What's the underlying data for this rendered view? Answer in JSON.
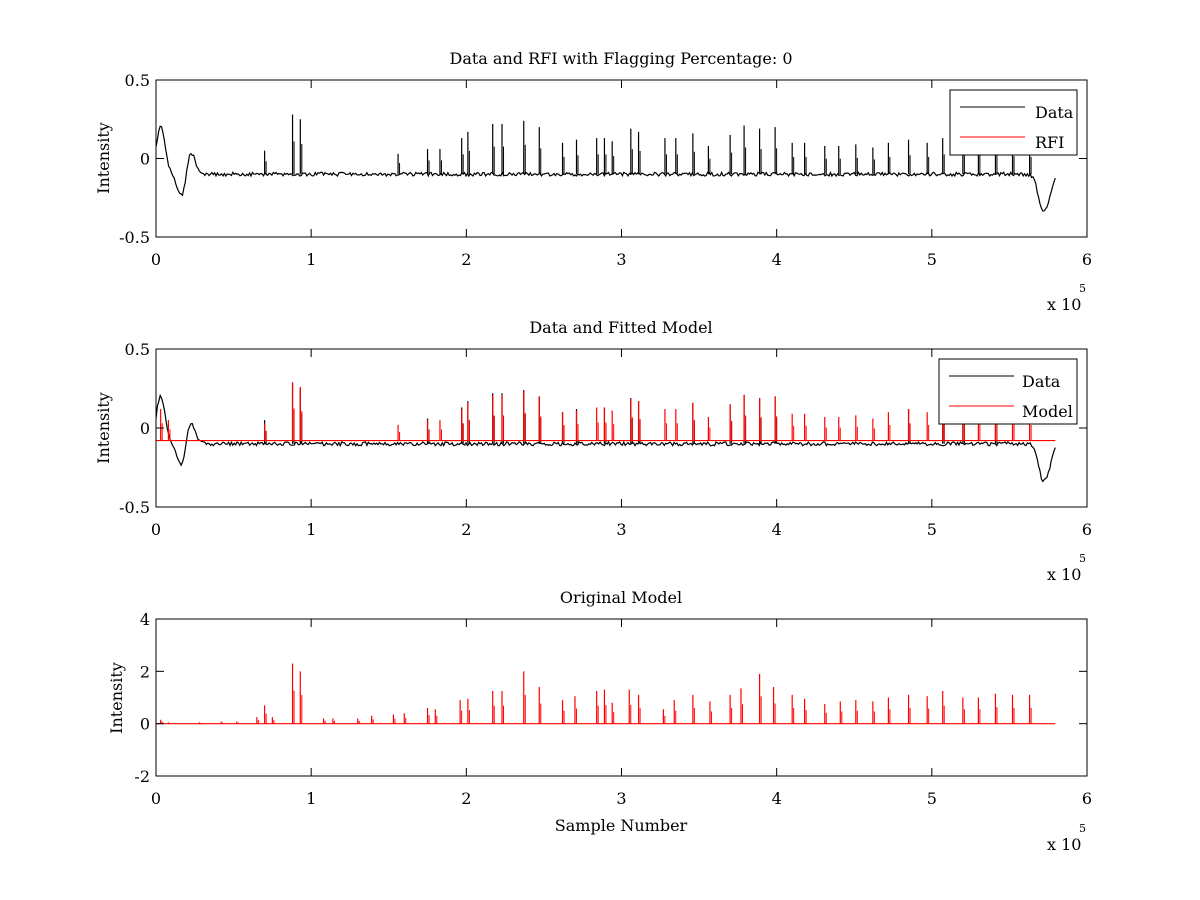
{
  "chart_data": [
    {
      "type": "line",
      "title": "Data and RFI with Flagging Percentage: 0",
      "xlabel": "",
      "ylabel": "Intensity",
      "xlim": [
        0,
        600000
      ],
      "ylim": [
        -0.5,
        0.5
      ],
      "x_ticks": [
        0,
        1,
        2,
        3,
        4,
        5,
        6
      ],
      "y_ticks": [
        -0.5,
        0,
        0.5
      ],
      "x_tick_labels": [
        "0",
        "1",
        "2",
        "3",
        "4",
        "5",
        "6"
      ],
      "y_tick_labels": [
        "-0.5",
        "0",
        "0.5"
      ],
      "x_exponent": "x 10",
      "x_exponent_power": "5",
      "legend": {
        "position": "top-right",
        "entries": [
          "Data",
          "RFI"
        ]
      },
      "series": [
        {
          "name": "Data",
          "color": "#000000",
          "baseline": -0.1,
          "noise": 0.012,
          "spikes": [
            [
              70000,
              0.05
            ],
            [
              88000,
              0.28
            ],
            [
              93000,
              0.25
            ],
            [
              156000,
              0.03
            ],
            [
              175000,
              0.06
            ],
            [
              183000,
              0.06
            ],
            [
              197000,
              0.13
            ],
            [
              201000,
              0.17
            ],
            [
              217000,
              0.22
            ],
            [
              223000,
              0.22
            ],
            [
              237000,
              0.24
            ],
            [
              247000,
              0.2
            ],
            [
              262000,
              0.1
            ],
            [
              271000,
              0.12
            ],
            [
              284000,
              0.13
            ],
            [
              289000,
              0.13
            ],
            [
              294000,
              0.11
            ],
            [
              306000,
              0.19
            ],
            [
              311000,
              0.17
            ],
            [
              328000,
              0.13
            ],
            [
              335000,
              0.13
            ],
            [
              346000,
              0.16
            ],
            [
              356000,
              0.08
            ],
            [
              370000,
              0.15
            ],
            [
              379000,
              0.21
            ],
            [
              389000,
              0.19
            ],
            [
              399000,
              0.2
            ],
            [
              410000,
              0.1
            ],
            [
              418000,
              0.1
            ],
            [
              431000,
              0.08
            ],
            [
              440000,
              0.08
            ],
            [
              451000,
              0.09
            ],
            [
              462000,
              0.07
            ],
            [
              472000,
              0.1
            ],
            [
              485000,
              0.12
            ],
            [
              497000,
              0.1
            ],
            [
              507000,
              0.13
            ],
            [
              520000,
              0.13
            ],
            [
              530000,
              0.12
            ],
            [
              541000,
              0.13
            ],
            [
              552000,
              0.11
            ],
            [
              563000,
              0.1
            ]
          ],
          "dips": [
            [
              3000,
              0.2
            ],
            [
              17000,
              -0.26
            ],
            [
              22000,
              0.06
            ],
            [
              571000,
              -0.28
            ],
            [
              575000,
              -0.22
            ]
          ]
        },
        {
          "name": "RFI",
          "color": "#ff0000",
          "values": []
        }
      ]
    },
    {
      "type": "line",
      "title": "Data and Fitted Model",
      "xlabel": "",
      "ylabel": "Intensity",
      "xlim": [
        0,
        600000
      ],
      "ylim": [
        -0.5,
        0.5
      ],
      "x_ticks": [
        0,
        1,
        2,
        3,
        4,
        5,
        6
      ],
      "y_ticks": [
        -0.5,
        0,
        0.5
      ],
      "x_tick_labels": [
        "0",
        "1",
        "2",
        "3",
        "4",
        "5",
        "6"
      ],
      "y_tick_labels": [
        "-0.5",
        "0",
        "0.5"
      ],
      "x_exponent": "x 10",
      "x_exponent_power": "5",
      "legend": {
        "position": "top-right",
        "entries": [
          "Data",
          "Model"
        ]
      },
      "series": [
        {
          "name": "Data",
          "color": "#000000",
          "baseline": -0.1,
          "noise": 0.012,
          "spikes": [
            [
              70000,
              0.05
            ],
            [
              88000,
              0.28
            ],
            [
              93000,
              0.25
            ],
            [
              175000,
              0.06
            ],
            [
              197000,
              0.13
            ],
            [
              201000,
              0.17
            ],
            [
              217000,
              0.22
            ],
            [
              223000,
              0.22
            ],
            [
              237000,
              0.24
            ],
            [
              247000,
              0.2
            ],
            [
              262000,
              0.1
            ],
            [
              271000,
              0.12
            ],
            [
              289000,
              0.13
            ],
            [
              306000,
              0.19
            ],
            [
              311000,
              0.17
            ],
            [
              346000,
              0.16
            ],
            [
              370000,
              0.15
            ],
            [
              379000,
              0.21
            ],
            [
              389000,
              0.19
            ],
            [
              399000,
              0.2
            ],
            [
              485000,
              0.12
            ],
            [
              507000,
              0.13
            ],
            [
              520000,
              0.13
            ],
            [
              541000,
              0.13
            ]
          ],
          "dips": [
            [
              3000,
              0.2
            ],
            [
              17000,
              -0.26
            ],
            [
              22000,
              0.06
            ],
            [
              571000,
              -0.28
            ],
            [
              575000,
              -0.22
            ]
          ]
        },
        {
          "name": "Model",
          "color": "#ff0000",
          "baseline": -0.08,
          "spikes": [
            [
              3000,
              0.12
            ],
            [
              8000,
              0.05
            ],
            [
              70000,
              0.03
            ],
            [
              88000,
              0.29
            ],
            [
              93000,
              0.26
            ],
            [
              156000,
              0.02
            ],
            [
              175000,
              0.05
            ],
            [
              183000,
              0.05
            ],
            [
              197000,
              0.12
            ],
            [
              201000,
              0.16
            ],
            [
              217000,
              0.21
            ],
            [
              223000,
              0.21
            ],
            [
              237000,
              0.24
            ],
            [
              247000,
              0.2
            ],
            [
              262000,
              0.1
            ],
            [
              271000,
              0.11
            ],
            [
              284000,
              0.13
            ],
            [
              289000,
              0.13
            ],
            [
              294000,
              0.11
            ],
            [
              306000,
              0.19
            ],
            [
              311000,
              0.17
            ],
            [
              328000,
              0.12
            ],
            [
              335000,
              0.12
            ],
            [
              346000,
              0.16
            ],
            [
              356000,
              0.07
            ],
            [
              370000,
              0.15
            ],
            [
              379000,
              0.21
            ],
            [
              389000,
              0.19
            ],
            [
              399000,
              0.2
            ],
            [
              410000,
              0.09
            ],
            [
              418000,
              0.09
            ],
            [
              431000,
              0.07
            ],
            [
              440000,
              0.07
            ],
            [
              451000,
              0.08
            ],
            [
              462000,
              0.06
            ],
            [
              472000,
              0.1
            ],
            [
              485000,
              0.12
            ],
            [
              497000,
              0.1
            ],
            [
              507000,
              0.13
            ],
            [
              520000,
              0.13
            ],
            [
              530000,
              0.12
            ],
            [
              541000,
              0.13
            ],
            [
              552000,
              0.11
            ],
            [
              563000,
              0.1
            ]
          ]
        }
      ]
    },
    {
      "type": "line",
      "title": "Original Model",
      "xlabel": "Sample Number",
      "ylabel": "Intensity",
      "xlim": [
        0,
        600000
      ],
      "ylim": [
        -2,
        4
      ],
      "x_ticks": [
        0,
        1,
        2,
        3,
        4,
        5,
        6
      ],
      "y_ticks": [
        -2,
        0,
        2,
        4
      ],
      "x_tick_labels": [
        "0",
        "1",
        "2",
        "3",
        "4",
        "5",
        "6"
      ],
      "y_tick_labels": [
        "-2",
        "0",
        "2",
        "4"
      ],
      "x_exponent": "x 10",
      "x_exponent_power": "5",
      "series": [
        {
          "name": "",
          "color": "#ff0000",
          "baseline": 0.0,
          "spikes": [
            [
              3000,
              0.15
            ],
            [
              8000,
              0.05
            ],
            [
              28000,
              0.05
            ],
            [
              42000,
              0.08
            ],
            [
              52000,
              0.08
            ],
            [
              65000,
              0.25
            ],
            [
              70000,
              0.7
            ],
            [
              75000,
              0.25
            ],
            [
              88000,
              2.3
            ],
            [
              93000,
              2.0
            ],
            [
              108000,
              0.2
            ],
            [
              114000,
              0.2
            ],
            [
              130000,
              0.2
            ],
            [
              139000,
              0.3
            ],
            [
              153000,
              0.35
            ],
            [
              160000,
              0.4
            ],
            [
              175000,
              0.6
            ],
            [
              180000,
              0.55
            ],
            [
              196000,
              0.9
            ],
            [
              201000,
              0.95
            ],
            [
              217000,
              1.25
            ],
            [
              223000,
              1.25
            ],
            [
              237000,
              2.0
            ],
            [
              247000,
              1.4
            ],
            [
              262000,
              0.9
            ],
            [
              270000,
              1.05
            ],
            [
              284000,
              1.25
            ],
            [
              289000,
              1.3
            ],
            [
              294000,
              0.8
            ],
            [
              305000,
              1.3
            ],
            [
              311000,
              1.1
            ],
            [
              327000,
              0.55
            ],
            [
              334000,
              0.9
            ],
            [
              346000,
              1.1
            ],
            [
              357000,
              0.85
            ],
            [
              370000,
              1.1
            ],
            [
              377000,
              1.35
            ],
            [
              389000,
              1.9
            ],
            [
              398000,
              1.4
            ],
            [
              410000,
              1.1
            ],
            [
              418000,
              0.95
            ],
            [
              431000,
              0.75
            ],
            [
              441000,
              0.85
            ],
            [
              451000,
              0.9
            ],
            [
              462000,
              0.85
            ],
            [
              472000,
              1.0
            ],
            [
              485000,
              1.1
            ],
            [
              497000,
              1.05
            ],
            [
              507000,
              1.25
            ],
            [
              520000,
              1.0
            ],
            [
              530000,
              1.0
            ],
            [
              541000,
              1.15
            ],
            [
              552000,
              1.1
            ],
            [
              563000,
              1.1
            ]
          ]
        }
      ]
    }
  ]
}
